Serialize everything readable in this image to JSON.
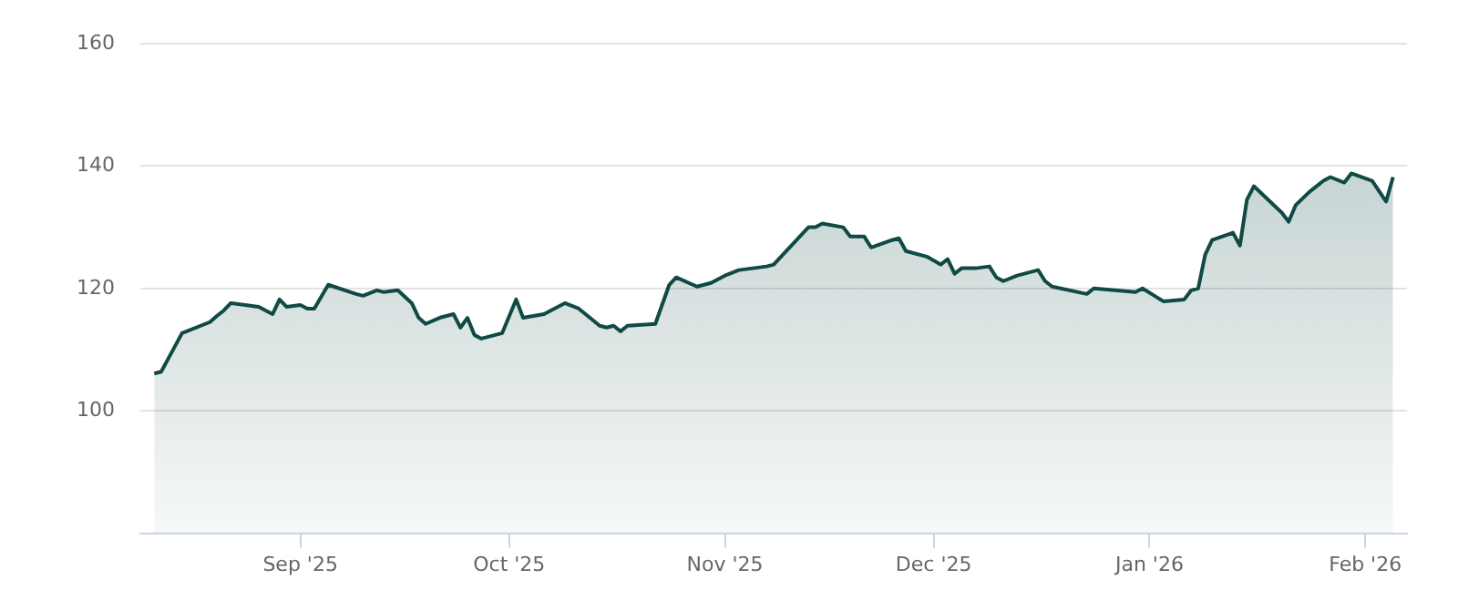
{
  "chart_data": {
    "type": "area",
    "x": [
      "2025-08-11",
      "2025-08-12",
      "2025-08-13",
      "2025-08-15",
      "2025-08-19",
      "2025-08-20",
      "2025-08-21",
      "2025-08-22",
      "2025-08-26",
      "2025-08-28",
      "2025-08-29",
      "2025-08-30",
      "2025-09-01",
      "2025-09-02",
      "2025-09-03",
      "2025-09-05",
      "2025-09-09",
      "2025-09-10",
      "2025-09-12",
      "2025-09-13",
      "2025-09-15",
      "2025-09-17",
      "2025-09-18",
      "2025-09-19",
      "2025-09-21",
      "2025-09-23",
      "2025-09-24",
      "2025-09-25",
      "2025-09-26",
      "2025-09-27",
      "2025-09-30",
      "2025-10-02",
      "2025-10-03",
      "2025-10-06",
      "2025-10-08",
      "2025-10-09",
      "2025-10-11",
      "2025-10-14",
      "2025-10-15",
      "2025-10-16",
      "2025-10-17",
      "2025-10-18",
      "2025-10-22",
      "2025-10-24",
      "2025-10-25",
      "2025-10-28",
      "2025-10-30",
      "2025-10-31",
      "2025-11-01",
      "2025-11-03",
      "2025-11-05",
      "2025-11-07",
      "2025-11-08",
      "2025-11-13",
      "2025-11-14",
      "2025-11-15",
      "2025-11-18",
      "2025-11-19",
      "2025-11-21",
      "2025-11-22",
      "2025-11-25",
      "2025-11-26",
      "2025-11-27",
      "2025-11-30",
      "2025-12-02",
      "2025-12-03",
      "2025-12-04",
      "2025-12-05",
      "2025-12-07",
      "2025-12-09",
      "2025-12-10",
      "2025-12-11",
      "2025-12-13",
      "2025-12-16",
      "2025-12-17",
      "2025-12-18",
      "2025-12-23",
      "2025-12-24",
      "2025-12-30",
      "2025-12-31",
      "2026-01-03",
      "2026-01-06",
      "2026-01-07",
      "2026-01-08",
      "2026-01-09",
      "2026-01-10",
      "2026-01-13",
      "2026-01-14",
      "2026-01-15",
      "2026-01-16",
      "2026-01-20",
      "2026-01-21",
      "2026-01-22",
      "2026-01-24",
      "2026-01-26",
      "2026-01-27",
      "2026-01-29",
      "2026-01-30",
      "2026-02-02",
      "2026-02-04",
      "2026-02-05"
    ],
    "series": [
      {
        "color": "#0f4a45",
        "values": [
          106.1,
          106.4,
          108.5,
          112.7,
          114.5,
          115.5,
          116.4,
          117.6,
          117.0,
          115.8,
          118.2,
          117.0,
          117.3,
          116.7,
          116.7,
          120.6,
          119.1,
          118.8,
          119.7,
          119.4,
          119.7,
          117.6,
          115.2,
          114.2,
          115.2,
          115.8,
          113.6,
          115.2,
          112.4,
          111.8,
          112.7,
          118.2,
          115.2,
          115.8,
          117.0,
          117.6,
          116.7,
          113.9,
          113.6,
          113.9,
          113.0,
          113.9,
          114.2,
          120.6,
          121.8,
          120.3,
          120.9,
          121.5,
          122.1,
          123.0,
          123.3,
          123.6,
          123.9,
          130.0,
          130.0,
          130.6,
          130.0,
          128.5,
          128.5,
          126.7,
          127.9,
          128.2,
          126.1,
          125.2,
          123.9,
          124.8,
          122.4,
          123.3,
          123.3,
          123.6,
          121.8,
          121.2,
          122.1,
          123.0,
          121.2,
          120.3,
          119.1,
          120.0,
          119.4,
          120.0,
          117.9,
          118.2,
          119.7,
          120.0,
          125.5,
          127.9,
          129.1,
          127.0,
          134.5,
          136.7,
          132.4,
          130.9,
          133.6,
          135.8,
          137.6,
          138.2,
          137.3,
          138.8,
          137.6,
          134.2,
          138.2
        ]
      }
    ],
    "xlim": [
      "2025-08-09",
      "2026-02-07"
    ],
    "xticks": [
      {
        "value": "2025-09-01",
        "label": "Sep '25"
      },
      {
        "value": "2025-10-01",
        "label": "Oct '25"
      },
      {
        "value": "2025-11-01",
        "label": "Nov '25"
      },
      {
        "value": "2025-12-01",
        "label": "Dec '25"
      },
      {
        "value": "2026-01-01",
        "label": "Jan '26"
      },
      {
        "value": "2026-02-01",
        "label": "Feb '26"
      }
    ],
    "ylim": [
      80,
      160
    ],
    "yticks": [
      100,
      120,
      140,
      160
    ],
    "grid": "y"
  }
}
